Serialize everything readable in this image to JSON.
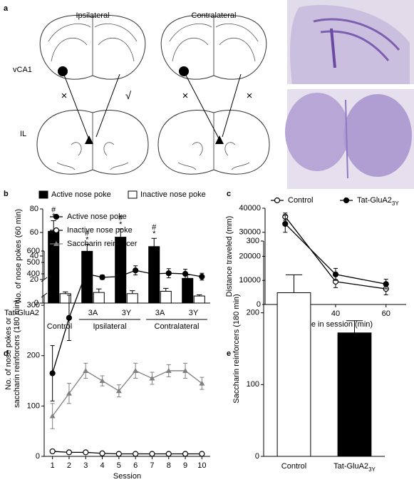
{
  "panel_labels": [
    "a",
    "b",
    "c",
    "d",
    "e"
  ],
  "diagram": {
    "columns": [
      "Ipsilateral",
      "Contralateral"
    ],
    "rows": [
      "vCA1",
      "IL"
    ],
    "marks": [
      "×",
      "√",
      "×",
      "×"
    ]
  },
  "chart_data": [
    {
      "type": "bar",
      "ylabel": "No. of nose pokes (60 min)",
      "row_label": "Tat-GluA2",
      "groups": [
        {
          "label": "Control",
          "categories": [
            null
          ]
        },
        {
          "label": "Ipsilateral",
          "categories": [
            "3A",
            "3Y"
          ]
        },
        {
          "label": "Contralateral",
          "categories": [
            "3A",
            "3Y"
          ]
        }
      ],
      "series": [
        {
          "name": "Active nose poke",
          "color": "#000000",
          "values": [
            61,
            44,
            56,
            48,
            21
          ],
          "errors": [
            9,
            6,
            7,
            7,
            3
          ],
          "annotations": [
            [
              "#",
              "*"
            ],
            [
              "#",
              "*"
            ],
            [
              "#",
              "*"
            ],
            [
              "#",
              "*"
            ],
            null
          ]
        },
        {
          "name": "Inactive nose poke",
          "color": "#ffffff",
          "values": [
            8,
            9,
            8,
            10,
            6
          ],
          "errors": [
            1.5,
            3,
            2.5,
            2.5,
            1
          ]
        }
      ],
      "ylim": [
        0,
        80
      ],
      "yticks": [
        0,
        20,
        40,
        60,
        80
      ],
      "legend": "top-row"
    },
    {
      "type": "line",
      "xlabel": "Time in session (min)",
      "ylabel": "Distance traveled (mm)",
      "x": [
        20,
        40,
        60
      ],
      "xlim": [
        12,
        68
      ],
      "xticks": [
        20,
        40,
        60
      ],
      "ylim": [
        0,
        40000
      ],
      "yticks": [
        0,
        10000,
        20000,
        30000,
        40000
      ],
      "series": [
        {
          "name": "Control",
          "color": "#000000",
          "marker": "open-circle",
          "values": [
            36500,
            9500,
            6500
          ],
          "errors": [
            1500,
            2500,
            2500
          ]
        },
        {
          "name": "Tat-GluA2",
          "subscript": "3Y",
          "color": "#000000",
          "marker": "filled-circle",
          "values": [
            33500,
            12500,
            8500
          ],
          "errors": [
            3500,
            2500,
            2000
          ]
        }
      ],
      "legend": "top-row"
    },
    {
      "type": "line",
      "xlabel": "Session",
      "ylabel": [
        "No. of nose pokes or",
        "saccharin reinforcers (180 min)"
      ],
      "x": [
        1,
        2,
        3,
        4,
        5,
        6,
        7,
        8,
        9,
        10
      ],
      "xlim": [
        0.5,
        10.5
      ],
      "xticks": [
        1,
        2,
        3,
        4,
        5,
        6,
        7,
        8,
        9,
        10
      ],
      "ylim": [
        0,
        600
      ],
      "ybreak": [
        320,
        350
      ],
      "yticks": [
        0,
        100,
        200,
        300,
        400,
        500,
        600
      ],
      "series": [
        {
          "name": "Active nose poke",
          "color": "#000000",
          "marker": "filled-circle",
          "values": [
            165,
            275,
            400,
            370,
            375,
            430,
            400,
            405,
            400,
            375
          ],
          "errors": [
            55,
            45,
            30,
            20,
            25,
            40,
            35,
            40,
            40,
            30
          ]
        },
        {
          "name": "Inactive nose poke",
          "color": "#000000",
          "marker": "open-circle",
          "values": [
            10,
            8,
            8,
            6,
            5,
            5,
            5,
            5,
            5,
            5
          ],
          "errors": [
            3,
            3,
            3,
            2,
            2,
            2,
            2,
            2,
            2,
            2
          ]
        },
        {
          "name": "Saccharin reinforcer",
          "color": "#808080",
          "marker": "triangle",
          "values": [
            80,
            125,
            170,
            150,
            130,
            170,
            155,
            170,
            170,
            145
          ],
          "errors": [
            25,
            20,
            15,
            10,
            12,
            15,
            12,
            12,
            15,
            12
          ]
        }
      ],
      "legend": "top-left-column"
    },
    {
      "type": "bar",
      "ylabel": "Saccharin reinforcers (180 min)",
      "categories": [
        "Control",
        "Tat-GluA2"
      ],
      "category_subscripts": [
        null,
        "3Y"
      ],
      "values": [
        228,
        172
      ],
      "errors": [
        25,
        17
      ],
      "colors": [
        "#ffffff",
        "#000000"
      ],
      "ylim": [
        0,
        300
      ],
      "yticks": [
        0,
        100,
        200,
        300
      ]
    }
  ]
}
